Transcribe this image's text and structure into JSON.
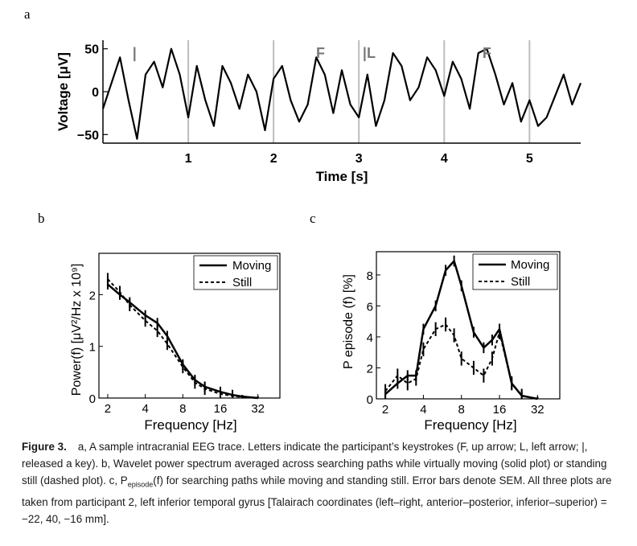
{
  "panel_a": {
    "letter": "a",
    "ylabel": "Voltage [μV]",
    "xlabel": "Time [s]",
    "yticks": [
      "50",
      "0",
      "−50"
    ],
    "xticks": [
      "1",
      "2",
      "3",
      "4",
      "5"
    ],
    "markers": [
      "|",
      "F",
      "|L",
      "F"
    ]
  },
  "panel_b": {
    "letter": "b",
    "ylabel": "Power(f) [μV²/Hz x 10⁹]",
    "xlabel": "Frequency [Hz]",
    "yticks": [
      "0",
      "1",
      "2"
    ],
    "xticks": [
      "2",
      "4",
      "8",
      "16",
      "32"
    ],
    "legend": [
      "Moving",
      "Still"
    ]
  },
  "panel_c": {
    "letter": "c",
    "ylabel": "P episode (f) [%]",
    "xlabel": "Frequency [Hz]",
    "yticks": [
      "0",
      "2",
      "4",
      "6",
      "8"
    ],
    "xticks": [
      "2",
      "4",
      "8",
      "16",
      "32"
    ],
    "legend": [
      "Moving",
      "Still"
    ]
  },
  "caption": {
    "label": "Figure 3.",
    "part1": "a, A sample intracranial EEG trace. Letters indicate the participant’s keystrokes (F, up arrow; L, left arrow; |, released a key). b, Wavelet power spectrum averaged across searching paths while virtually moving (solid plot) or standing still (dashed plot). c, P",
    "sub": "episode",
    "part2": "(f) for searching paths while moving and standing still. Error bars denote SEM. All three plots are taken from participant 2, left inferior temporal gyrus [Talairach coordinates (left–right, anterior–posterior, inferior–superior) = −22, 40, −16 mm]."
  },
  "chart_data": [
    {
      "type": "line",
      "panel": "a",
      "xlabel": "Time [s]",
      "ylabel": "Voltage [μV]",
      "xlim": [
        0,
        5.6
      ],
      "ylim": [
        -60,
        60
      ],
      "x": [
        0.0,
        0.1,
        0.2,
        0.3,
        0.4,
        0.5,
        0.6,
        0.7,
        0.8,
        0.9,
        1.0,
        1.1,
        1.2,
        1.3,
        1.4,
        1.5,
        1.6,
        1.7,
        1.8,
        1.9,
        2.0,
        2.1,
        2.2,
        2.3,
        2.4,
        2.5,
        2.6,
        2.7,
        2.8,
        2.9,
        3.0,
        3.1,
        3.2,
        3.3,
        3.4,
        3.5,
        3.6,
        3.7,
        3.8,
        3.9,
        4.0,
        4.1,
        4.2,
        4.3,
        4.4,
        4.5,
        4.6,
        4.7,
        4.8,
        4.9,
        5.0,
        5.1,
        5.2,
        5.3,
        5.4,
        5.5,
        5.6
      ],
      "y": [
        -20,
        10,
        40,
        -10,
        -55,
        20,
        35,
        5,
        50,
        20,
        -30,
        30,
        -10,
        -40,
        30,
        10,
        -20,
        20,
        0,
        -45,
        15,
        30,
        -10,
        -35,
        -15,
        40,
        20,
        -25,
        25,
        -15,
        -30,
        20,
        -40,
        -10,
        45,
        30,
        -10,
        5,
        40,
        25,
        -5,
        35,
        15,
        -20,
        45,
        50,
        20,
        -15,
        10,
        -35,
        -10,
        -40,
        -30,
        -5,
        20,
        -15,
        10
      ]
    },
    {
      "type": "line",
      "panel": "b",
      "xlabel": "Frequency [Hz]",
      "ylabel": "Power(f) [μV²/Hz x 10⁹]",
      "x_scale": "log2",
      "xlim": [
        1.7,
        48
      ],
      "ylim": [
        0,
        2.8
      ],
      "x": [
        2,
        2.5,
        3,
        4,
        5,
        6,
        8,
        10,
        12,
        16,
        20,
        24,
        32
      ],
      "series": [
        {
          "name": "Moving",
          "values": [
            2.2,
            2.0,
            1.85,
            1.6,
            1.45,
            1.2,
            0.65,
            0.35,
            0.22,
            0.12,
            0.06,
            0.03,
            0.0
          ]
        },
        {
          "name": "Still",
          "values": [
            2.3,
            2.05,
            1.8,
            1.5,
            1.3,
            1.05,
            0.6,
            0.3,
            0.18,
            0.08,
            0.04,
            0.02,
            0.0
          ]
        }
      ]
    },
    {
      "type": "line",
      "panel": "c",
      "xlabel": "Frequency [Hz]",
      "ylabel": "P episode (f) [%]",
      "x_scale": "log2",
      "xlim": [
        1.7,
        48
      ],
      "ylim": [
        0,
        9.5
      ],
      "x": [
        2,
        2.5,
        3,
        3.5,
        4,
        5,
        6,
        7,
        8,
        10,
        12,
        14,
        16,
        20,
        24,
        32
      ],
      "series": [
        {
          "name": "Moving",
          "values": [
            0.3,
            1.0,
            1.5,
            1.5,
            4.5,
            6.0,
            8.3,
            8.9,
            7.3,
            4.3,
            3.3,
            3.8,
            4.5,
            1.0,
            0.2,
            0.0
          ]
        },
        {
          "name": "Still",
          "values": [
            0.5,
            1.5,
            1.0,
            1.3,
            3.2,
            4.5,
            4.8,
            4.1,
            2.6,
            2.0,
            1.5,
            2.6,
            4.3,
            1.0,
            0.2,
            0.0
          ]
        }
      ]
    }
  ]
}
